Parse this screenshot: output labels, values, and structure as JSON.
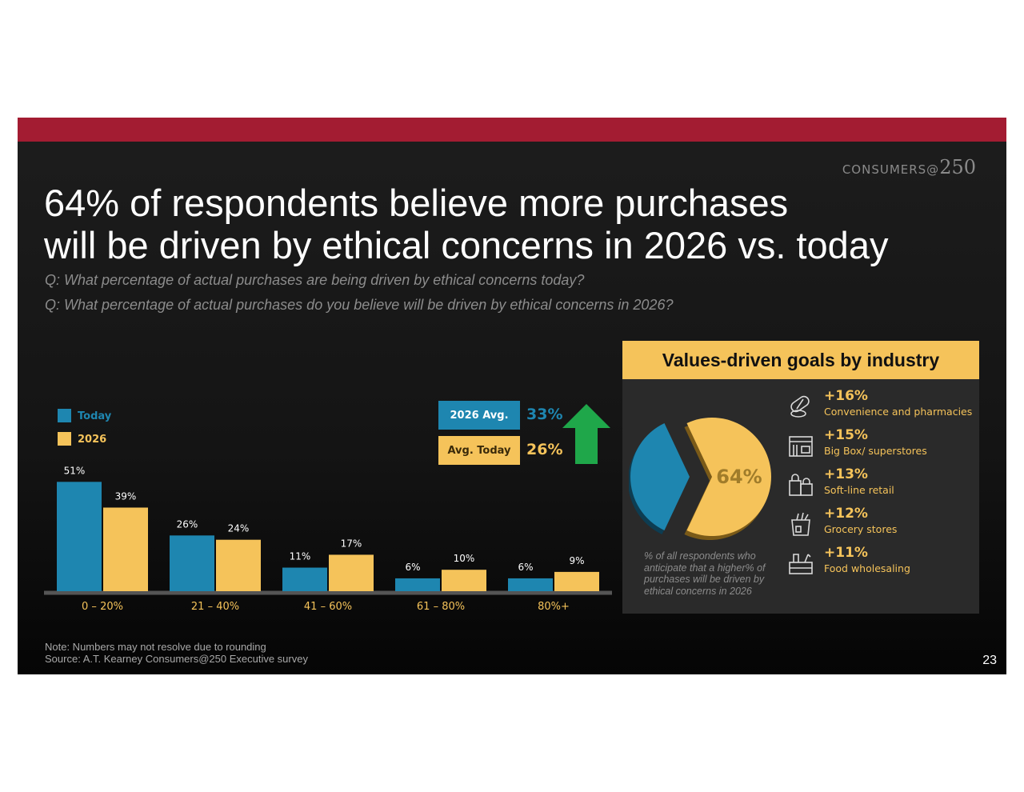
{
  "header": {
    "brand_text": "CONSUMERS@",
    "brand_number": "250",
    "title_line1": "64% of respondents believe more purchases",
    "title_line2": "will be driven by ethical concerns in 2026 vs. today",
    "question1": "Q: What percentage of actual purchases are being driven by ethical concerns today?",
    "question2": "Q: What percentage of actual purchases do you believe will be driven by ethical concerns in 2026?"
  },
  "averages": {
    "avg_2026_label": "2026 Avg.",
    "avg_2026_value": "33%",
    "avg_today_label": "Avg. Today",
    "avg_today_value": "26%"
  },
  "chart_data": [
    {
      "type": "bar",
      "categories": [
        "0 – 20%",
        "21 – 40%",
        "41 – 60%",
        "61 – 80%",
        "80%+"
      ],
      "series": [
        {
          "name": "Today",
          "values": [
            51,
            26,
            11,
            6,
            6
          ],
          "labels": [
            "51%",
            "26%",
            "11%",
            "6%",
            "6%"
          ],
          "color": "#1e86b0"
        },
        {
          "name": "2026",
          "values": [
            39,
            24,
            17,
            10,
            9
          ],
          "labels": [
            "39%",
            "24%",
            "17%",
            "10%",
            "9%"
          ],
          "color": "#f5c35a"
        }
      ],
      "legend": "top-left",
      "grid": false
    },
    {
      "type": "pie",
      "values": [
        64,
        36
      ],
      "colors": [
        "#f5c35a",
        "#1e86b0"
      ],
      "label": "64%"
    }
  ],
  "industry_panel": {
    "title": "Values-driven goals by industry",
    "pie_caption": "% of all respondents who anticipate that a higher% of purchases will be driven by ethical concerns in 2026",
    "items": [
      {
        "pct": "+16%",
        "label": "Convenience and pharmacies",
        "icon": "pills-icon"
      },
      {
        "pct": "+15%",
        "label": "Big Box/ superstores",
        "icon": "storefront-icon"
      },
      {
        "pct": "+13%",
        "label": "Soft-line retail",
        "icon": "shopping-bags-icon"
      },
      {
        "pct": "+12%",
        "label": "Grocery stores",
        "icon": "grocery-bag-icon"
      },
      {
        "pct": "+11%",
        "label": "Food wholesaling",
        "icon": "wholesale-box-icon"
      }
    ]
  },
  "footer": {
    "note": "Note: Numbers may not resolve due to rounding",
    "source": "Source: A.T. Kearney Consumers@250 Executive survey",
    "page_number": "23"
  }
}
